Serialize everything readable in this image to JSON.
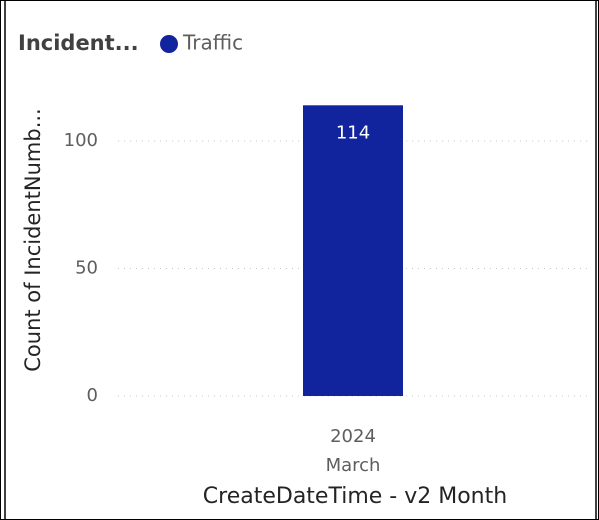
{
  "chart_data": {
    "type": "bar",
    "legend_title": "Incident...",
    "x_axis_label": "CreateDateTime - v2 Month",
    "y_axis_label": "Count of IncidentNumb...",
    "categories": [
      "March"
    ],
    "category_years": [
      "2024"
    ],
    "series": [
      {
        "name": "Traffic",
        "color": "#12239e",
        "values": [
          114
        ]
      }
    ],
    "ylim": [
      0,
      115
    ],
    "yticks": [
      0,
      50,
      100
    ],
    "grid": true
  }
}
